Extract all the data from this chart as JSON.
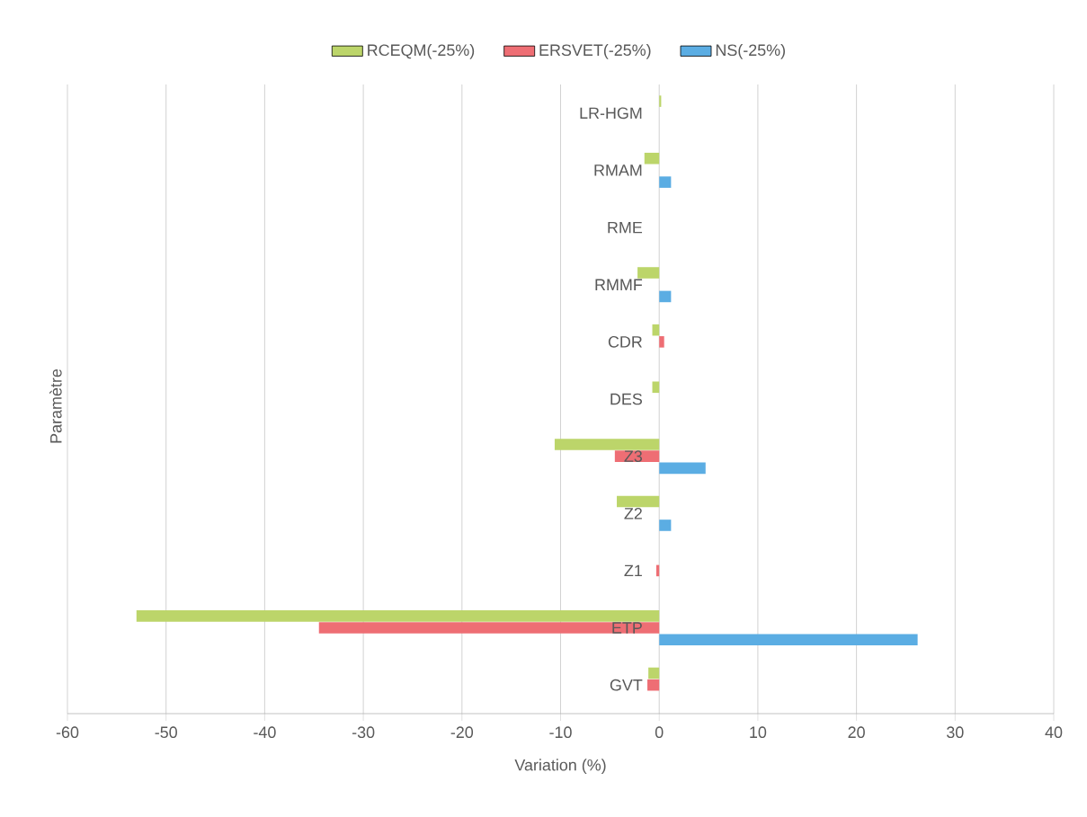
{
  "chart_data": {
    "type": "bar",
    "orientation": "horizontal",
    "xlabel": "Variation (%)",
    "ylabel": "Paramètre",
    "categories": [
      "LR-HGM",
      "RMAM",
      "RME",
      "RMMF",
      "CDR",
      "DES",
      "Z3",
      "Z2",
      "Z1",
      "ETP",
      "GVT"
    ],
    "series": [
      {
        "name": "RCEQM(-25%)",
        "color": "#bcd56a",
        "values": [
          0.2,
          -1.5,
          null,
          -2.2,
          -0.7,
          -0.7,
          -10.6,
          -4.3,
          null,
          -53,
          -1.1
        ]
      },
      {
        "name": "ERSVET(-25%)",
        "color": "#ee6e74",
        "values": [
          null,
          null,
          null,
          null,
          0.5,
          null,
          -4.5,
          null,
          -0.3,
          -34.5,
          -1.2
        ]
      },
      {
        "name": "NS(-25%)",
        "color": "#5badE3",
        "values": [
          null,
          1.2,
          null,
          1.2,
          null,
          null,
          4.7,
          1.2,
          null,
          26.2,
          null
        ]
      }
    ],
    "xlim": [
      -60,
      40
    ],
    "xticks": [
      -60,
      -50,
      -40,
      -30,
      -20,
      -10,
      0,
      10,
      20,
      30,
      40
    ],
    "grid": "x",
    "legend": "top"
  }
}
